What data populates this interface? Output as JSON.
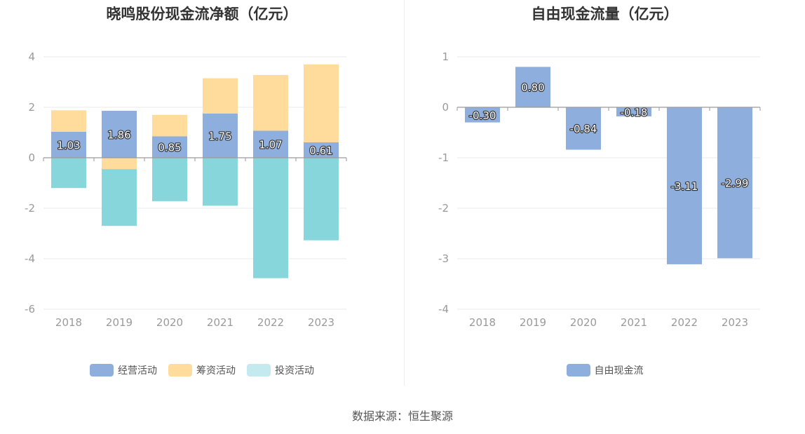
{
  "colors": {
    "operating": "#8eaedd",
    "financing": "#ffdb9c",
    "investing": "#87d6dc",
    "investing_swatch": "#c4eaef",
    "free_cash_flow": "#8eaedd",
    "grid": "#e8e8ee",
    "zero_line": "#9a9a9a"
  },
  "source": "数据来源：恒生聚源",
  "chart_data": [
    {
      "type": "bar",
      "stacked": true,
      "title": "晓鸣股份现金流净额（亿元）",
      "categories": [
        "2018",
        "2019",
        "2020",
        "2021",
        "2022",
        "2023"
      ],
      "series": [
        {
          "name": "经营活动",
          "values": [
            1.03,
            1.86,
            0.85,
            1.75,
            1.07,
            0.61
          ],
          "labels": [
            "1.03",
            "1.86",
            "0.85",
            "1.75",
            "1.07",
            "0.61"
          ]
        },
        {
          "name": "筹资活动",
          "values": [
            0.85,
            -0.45,
            0.85,
            1.4,
            2.21,
            3.09
          ]
        },
        {
          "name": "投资活动",
          "values": [
            -1.2,
            -2.25,
            -1.72,
            -1.9,
            -4.77,
            -3.27
          ]
        }
      ],
      "ylim": [
        -6,
        4
      ],
      "yticks": [
        "4",
        "2",
        "0",
        "-2",
        "-4",
        "-6"
      ],
      "grid": true,
      "legend": "bottom"
    },
    {
      "type": "bar",
      "title": "自由现金流量（亿元）",
      "categories": [
        "2018",
        "2019",
        "2020",
        "2021",
        "2022",
        "2023"
      ],
      "series": [
        {
          "name": "自由现金流",
          "values": [
            -0.3,
            0.8,
            -0.84,
            -0.18,
            -3.11,
            -2.99
          ],
          "labels": [
            "-0.30",
            "0.80",
            "-0.84",
            "-0.18",
            "-3.11",
            "-2.99"
          ]
        }
      ],
      "ylim": [
        -4,
        1
      ],
      "yticks": [
        "1",
        "0",
        "-1",
        "-2",
        "-3",
        "-4"
      ],
      "grid": true,
      "legend": "bottom"
    }
  ]
}
